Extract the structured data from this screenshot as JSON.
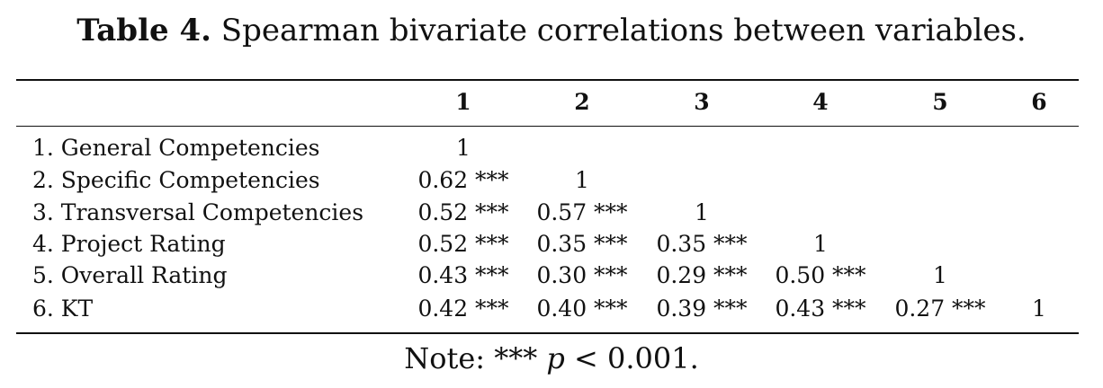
{
  "caption": {
    "label": "Table 4.",
    "text": "Spearman bivariate correlations between variables."
  },
  "table": {
    "columns": [
      "1",
      "2",
      "3",
      "4",
      "5",
      "6"
    ],
    "rows": [
      {
        "label": "1. General Competencies",
        "values": [
          "1",
          "",
          "",
          "",
          "",
          ""
        ]
      },
      {
        "label": "2. Specific Competencies",
        "values": [
          "0.62 ***",
          "1",
          "",
          "",
          "",
          ""
        ]
      },
      {
        "label": "3. Transversal Competencies",
        "values": [
          "0.52 ***",
          "0.57 ***",
          "1",
          "",
          "",
          ""
        ]
      },
      {
        "label": "4. Project Rating",
        "values": [
          "0.52 ***",
          "0.35 ***",
          "0.35 ***",
          "1",
          "",
          ""
        ]
      },
      {
        "label": "5. Overall Rating",
        "values": [
          "0.43 ***",
          "0.30 ***",
          "0.29 ***",
          "0.50 ***",
          "1",
          ""
        ]
      },
      {
        "label": "6. KT",
        "values": [
          "0.42 ***",
          "0.40 ***",
          "0.39 ***",
          "0.43 ***",
          "0.27 ***",
          "1"
        ]
      }
    ]
  },
  "note": {
    "prefix": "Note: *** ",
    "p_symbol": "p",
    "suffix": " < 0.001."
  }
}
